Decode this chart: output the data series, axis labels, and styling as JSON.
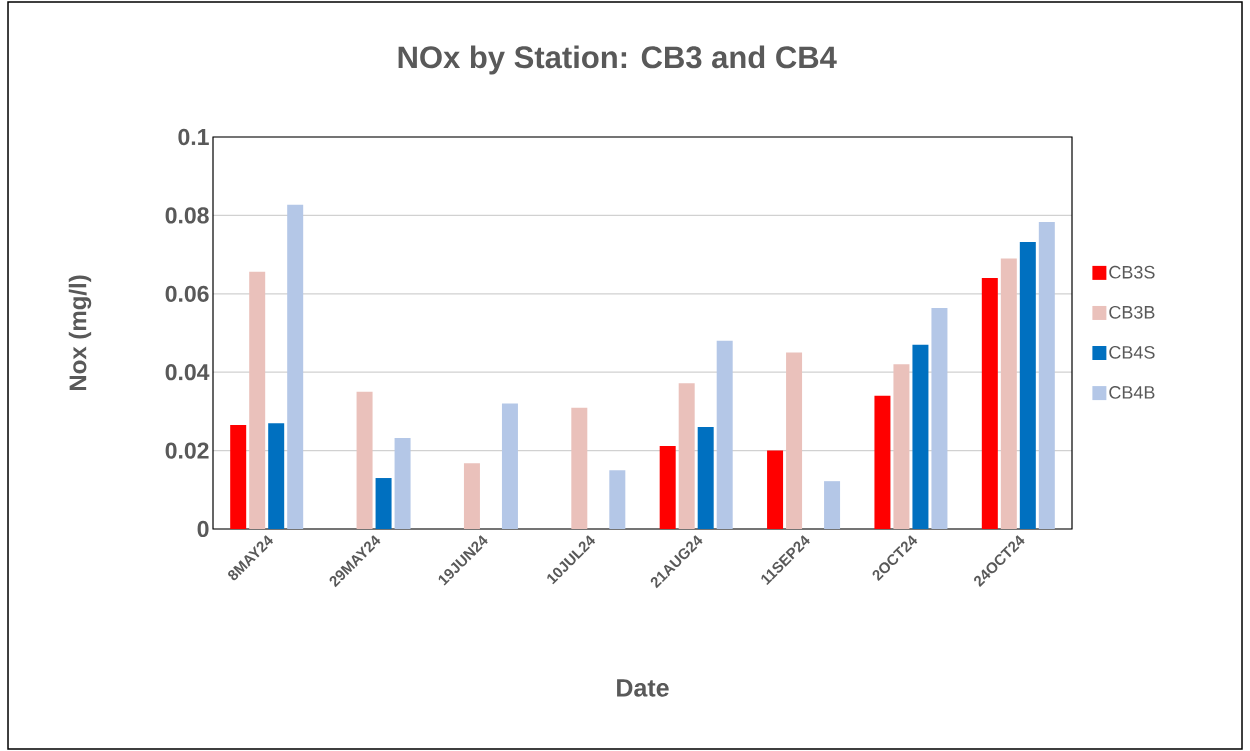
{
  "chart_data": {
    "type": "bar",
    "title": "NOx by Station: CB3 and CB4",
    "xlabel": "Date",
    "ylabel": "Nox (mg/l)",
    "categories": [
      "8MAY24",
      "29MAY24",
      "19JUN24",
      "10JUL24",
      "21AUG24",
      "11SEP24",
      "2OCT24",
      "24OCT24"
    ],
    "series": [
      {
        "name": "CB3S",
        "color": "#ff0000",
        "values": [
          0.0265,
          null,
          null,
          null,
          0.0212,
          0.02,
          0.034,
          0.064
        ]
      },
      {
        "name": "CB3B",
        "color": "#eac1bb",
        "values": [
          0.0656,
          0.035,
          0.0168,
          0.0309,
          0.0372,
          0.045,
          0.042,
          0.069
        ]
      },
      {
        "name": "CB4S",
        "color": "#0070c0",
        "values": [
          0.027,
          0.013,
          null,
          null,
          0.026,
          null,
          0.047,
          0.0732
        ]
      },
      {
        "name": "CB4B",
        "color": "#b4c7e7",
        "values": [
          0.0827,
          0.0232,
          0.032,
          0.015,
          0.048,
          0.0122,
          0.0564,
          0.0783
        ]
      }
    ],
    "ylim": [
      0,
      0.1
    ],
    "yticks": [
      0,
      0.02,
      0.04,
      0.06,
      0.08,
      0.1
    ],
    "grid": "y",
    "legend": "right"
  }
}
